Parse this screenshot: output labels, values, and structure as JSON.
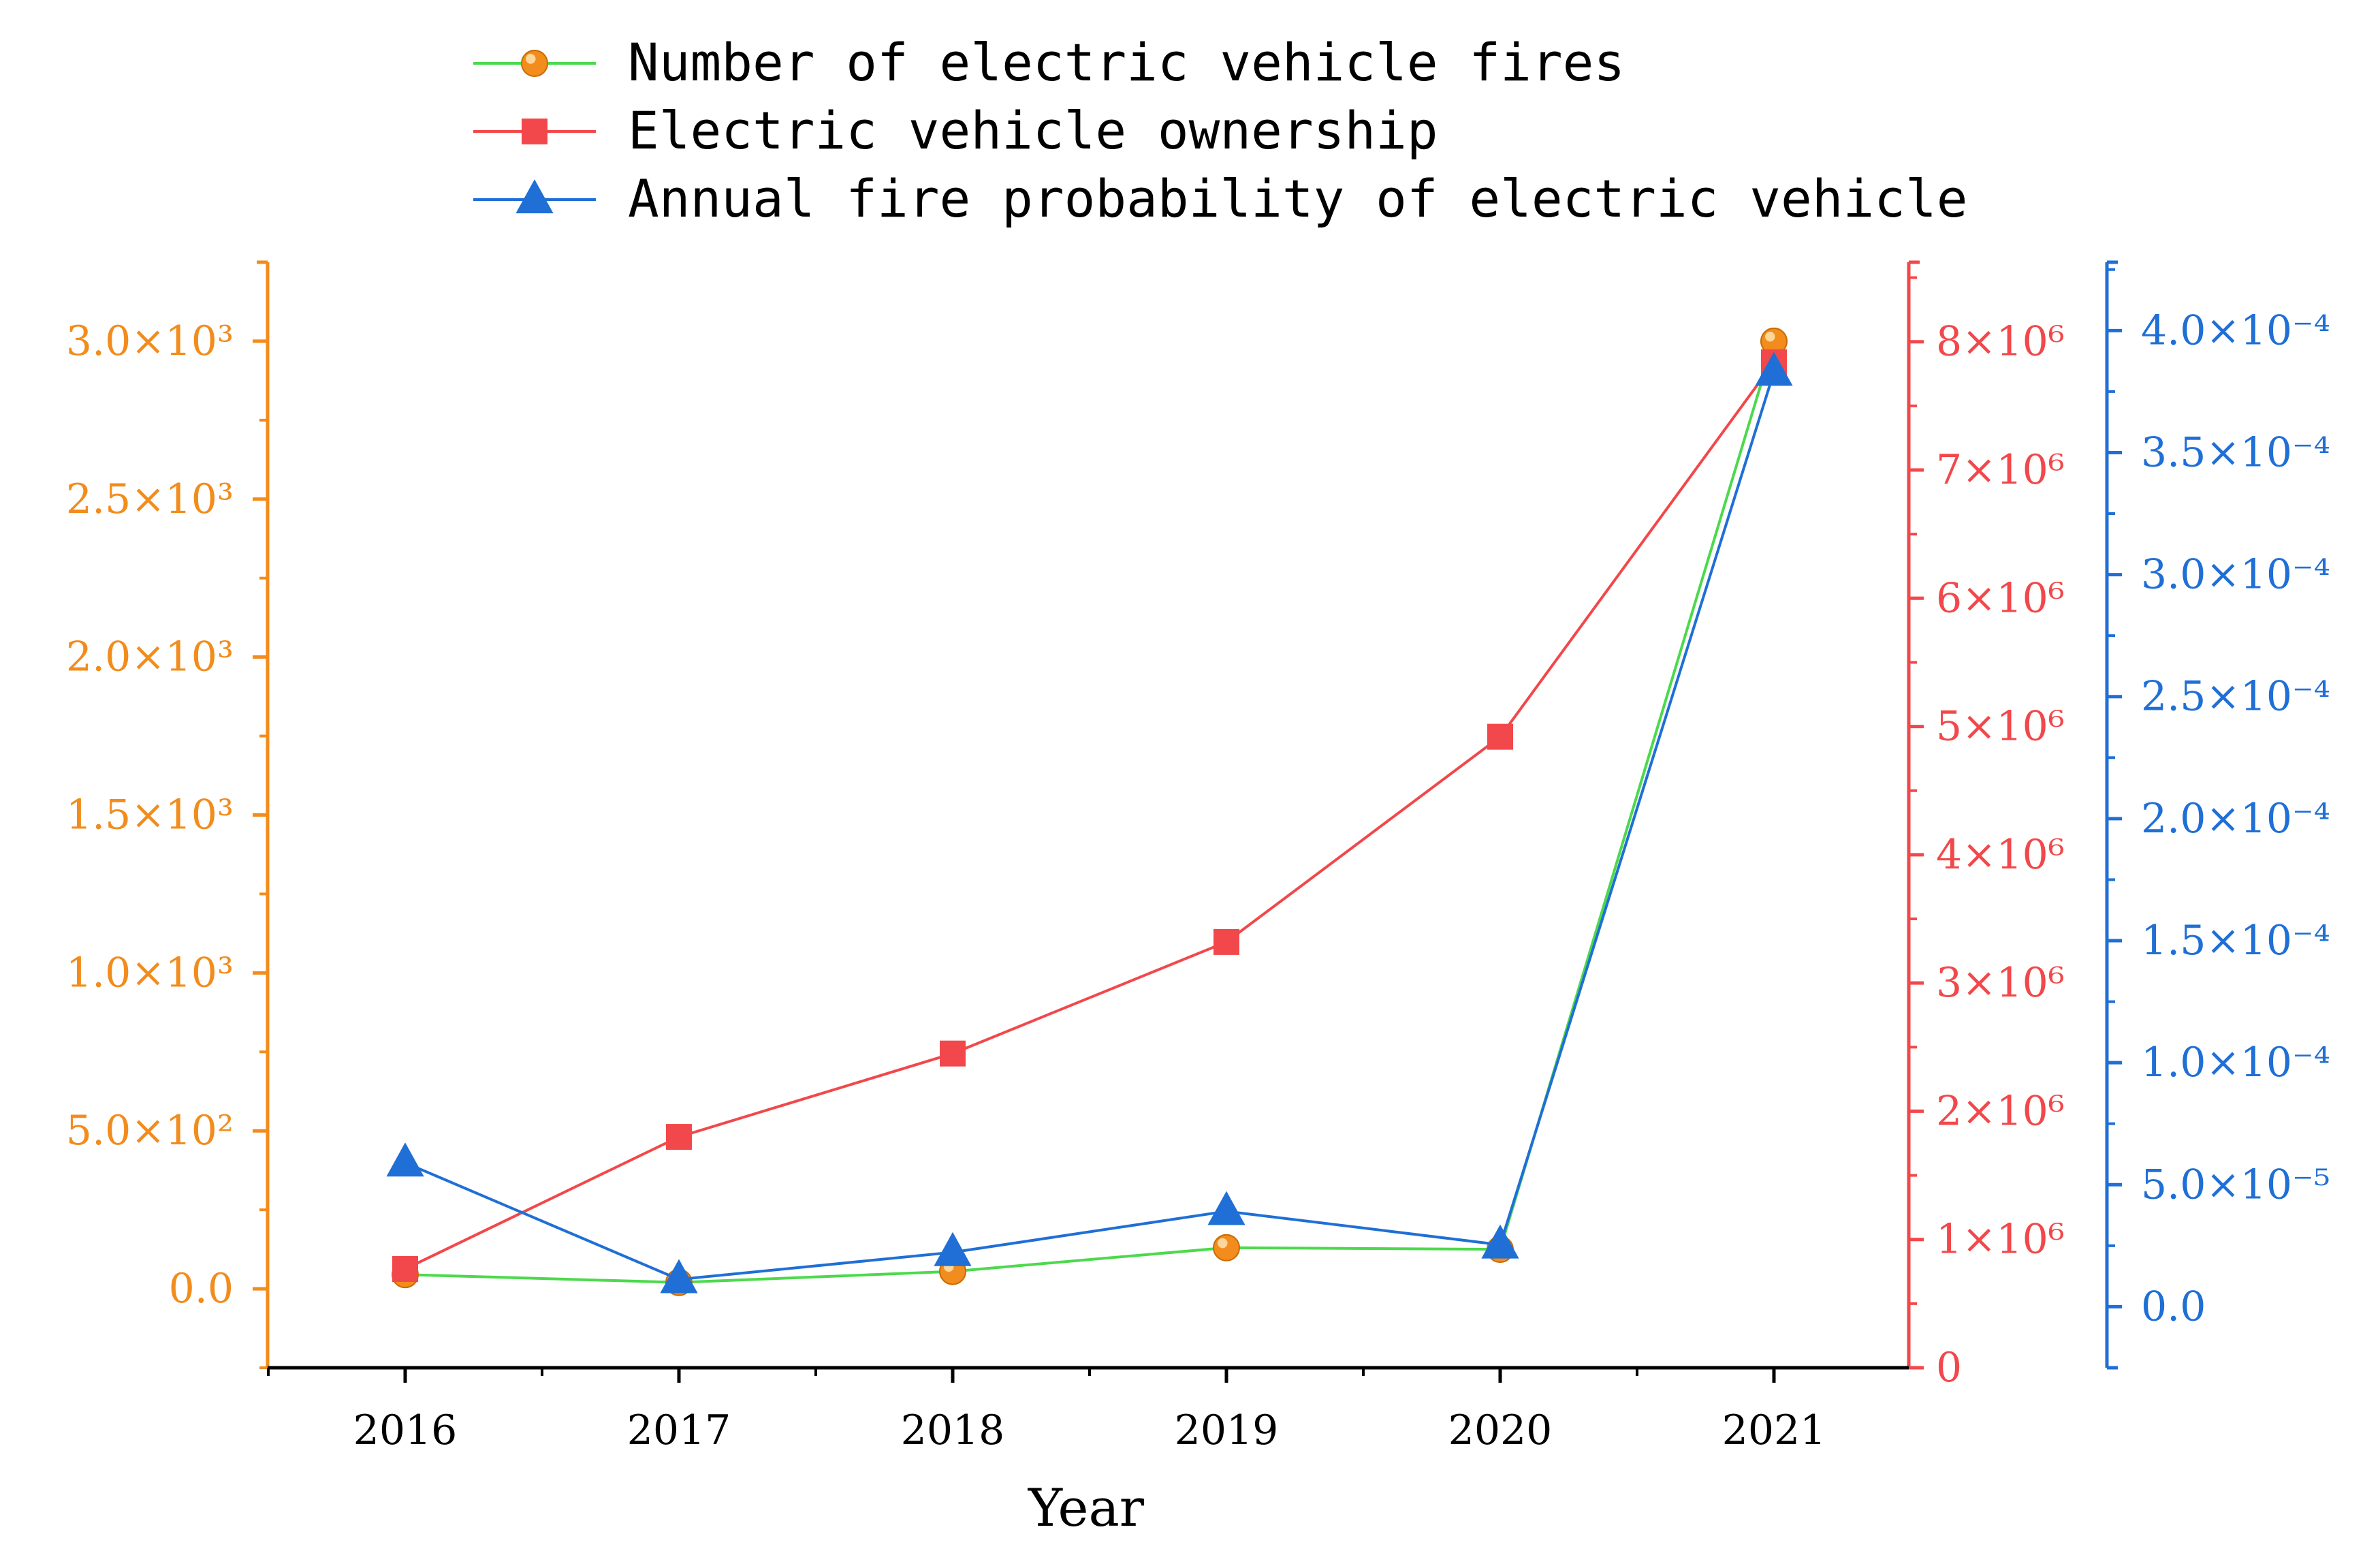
{
  "chart_data": {
    "type": "line",
    "title": "",
    "xlabel": "Year",
    "categories": [
      "2016",
      "2017",
      "2018",
      "2019",
      "2020",
      "2021"
    ],
    "axes": {
      "left": {
        "color": "#f28c1c",
        "ylim": [
          -250,
          3250
        ],
        "ticks": [
          0,
          500,
          1000,
          1500,
          2000,
          2500,
          3000
        ],
        "tick_labels": [
          "0.0",
          "5.0×10²",
          "1.0×10³",
          "1.5×10³",
          "2.0×10³",
          "2.5×10³",
          "3.0×10³"
        ]
      },
      "right": {
        "color": "#f2484b",
        "ylim": [
          0,
          8620000
        ],
        "ticks": [
          0,
          1000000,
          2000000,
          3000000,
          4000000,
          5000000,
          6000000,
          7000000,
          8000000
        ],
        "tick_labels": [
          "0",
          "1×10⁶",
          "2×10⁶",
          "3×10⁶",
          "4×10⁶",
          "5×10⁶",
          "6×10⁶",
          "7×10⁶",
          "8×10⁶"
        ]
      },
      "right2": {
        "color": "#1f6fd6",
        "ylim": [
          -2.5e-05,
          0.000428
        ],
        "ticks": [
          0,
          5e-05,
          0.0001,
          0.00015,
          0.0002,
          0.00025,
          0.0003,
          0.00035,
          0.0004
        ],
        "tick_labels": [
          "0.0",
          "5.0×10⁻⁵",
          "1.0×10⁻⁴",
          "1.5×10⁻⁴",
          "2.0×10⁻⁴",
          "2.5×10⁻⁴",
          "3.0×10⁻⁴",
          "3.5×10⁻⁴",
          "4.0×10⁻⁴"
        ]
      }
    },
    "series": [
      {
        "name": "Number of electric vehicle fires",
        "axis": "left",
        "marker": "circle",
        "line_color": "#4cd94c",
        "marker_color": "#f28c1c",
        "values": [
          45,
          20,
          55,
          130,
          125,
          3000
        ]
      },
      {
        "name": "Electric vehicle ownership",
        "axis": "right",
        "marker": "square",
        "line_color": "#f2484b",
        "marker_color": "#f2484b",
        "values": [
          770000,
          1800000,
          2450000,
          3320000,
          4920000,
          7840000
        ]
      },
      {
        "name": "Annual fire probability of electric vehicle",
        "axis": "right2",
        "marker": "triangle",
        "line_color": "#1f6fd6",
        "marker_color": "#1f6fd6",
        "values": [
          5.9e-05,
          1.12e-05,
          2.23e-05,
          3.91e-05,
          2.54e-05,
          0.000383
        ]
      }
    ],
    "legend_position": "top-center"
  }
}
